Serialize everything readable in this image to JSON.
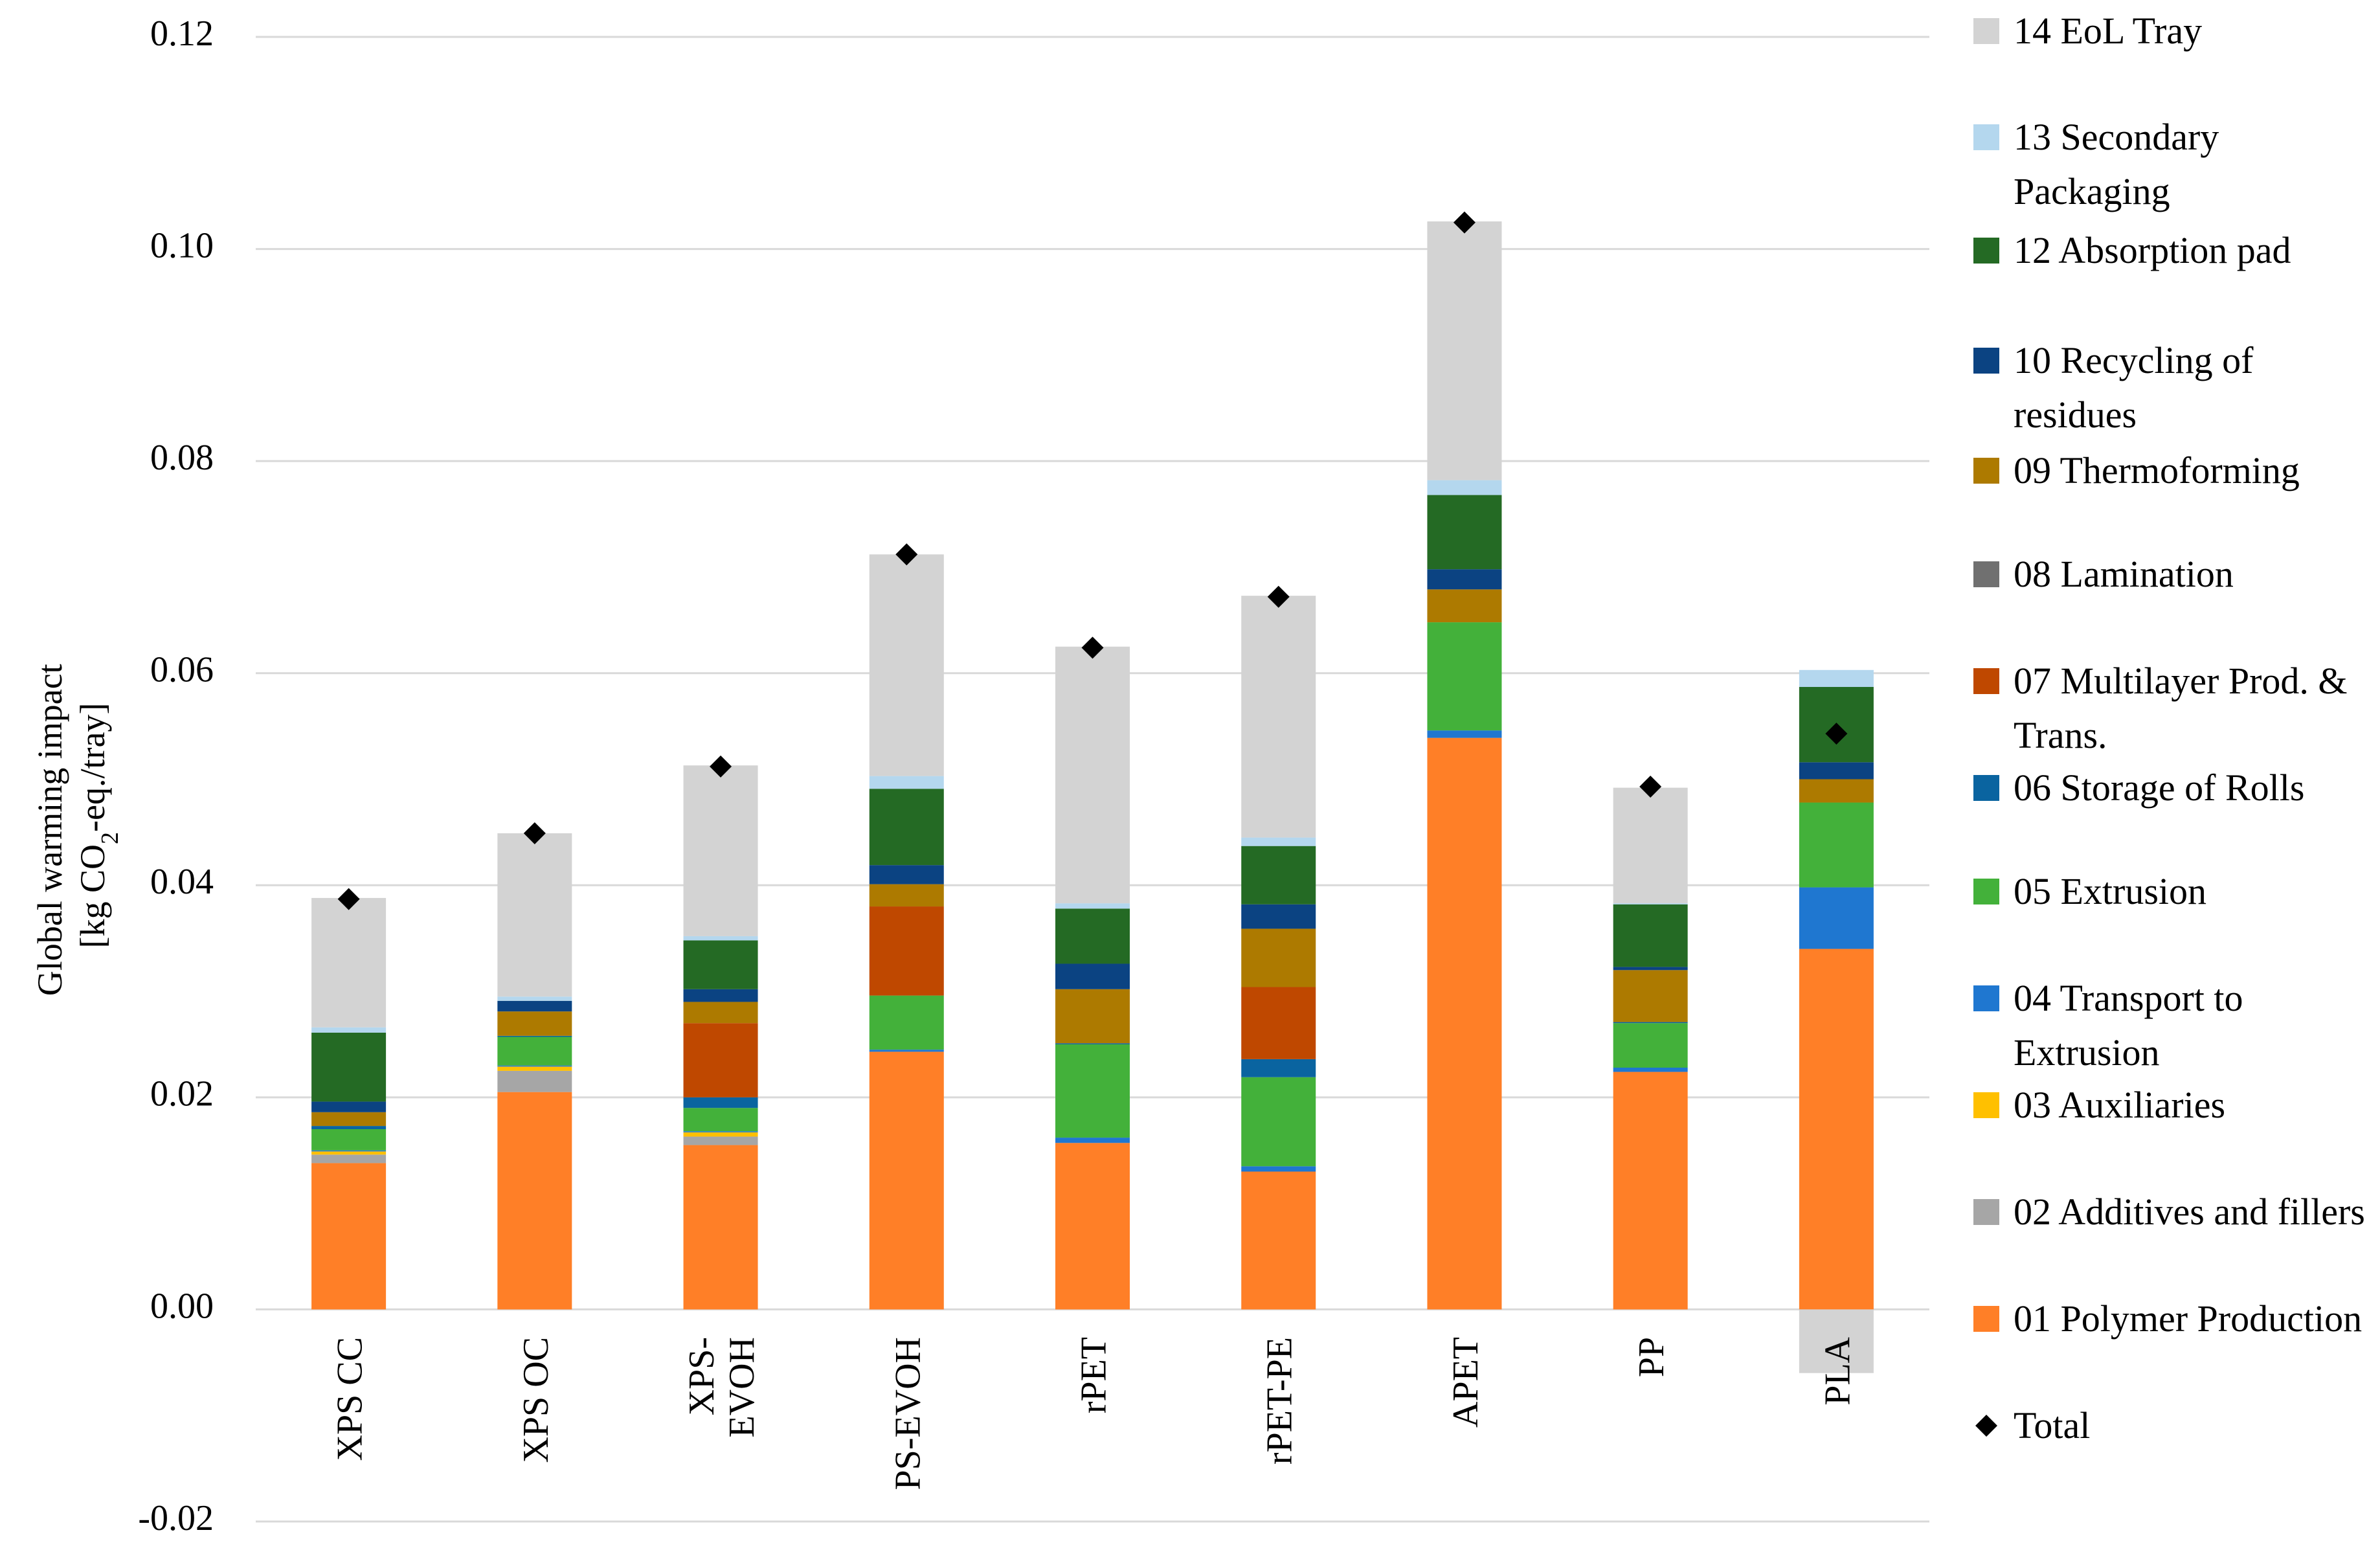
{
  "chart_data": {
    "type": "stacked-bar",
    "title": "",
    "ylabel_line1": "Global warming impact",
    "ylabel_line2_prefix": "[kg CO",
    "ylabel_line2_sub": "2",
    "ylabel_line2_suffix": "-eq./tray]",
    "ylim": [
      -0.02,
      0.12
    ],
    "yticks": [
      {
        "value": 0.12,
        "label": "0.12"
      },
      {
        "value": 0.1,
        "label": "0.10"
      },
      {
        "value": 0.08,
        "label": "0.08"
      },
      {
        "value": 0.06,
        "label": "0.06"
      },
      {
        "value": 0.04,
        "label": "0.04"
      },
      {
        "value": 0.02,
        "label": "0.02"
      },
      {
        "value": 0.0,
        "label": "0.00"
      },
      {
        "value": -0.02,
        "label": "-0.02"
      }
    ],
    "categories": [
      {
        "lines": [
          "XPS CC"
        ]
      },
      {
        "lines": [
          "XPS OC"
        ]
      },
      {
        "lines": [
          "XPS-",
          "EVOH"
        ]
      },
      {
        "lines": [
          "PS-EVOH"
        ]
      },
      {
        "lines": [
          "rPET"
        ]
      },
      {
        "lines": [
          "rPET-PE"
        ]
      },
      {
        "lines": [
          "APET"
        ]
      },
      {
        "lines": [
          "PP"
        ]
      },
      {
        "lines": [
          "PLA"
        ]
      }
    ],
    "series": [
      {
        "name": "01 Polymer Production",
        "color": "#FF7F27",
        "values": [
          0.0138,
          0.0205,
          0.0155,
          0.0243,
          0.0157,
          0.013,
          0.0539,
          0.0224,
          0.034
        ]
      },
      {
        "name": "02 Additives and fillers",
        "color": "#A6A6A6",
        "values": [
          0.0008,
          0.002,
          0.0008,
          0,
          0,
          0,
          0,
          0,
          0
        ]
      },
      {
        "name": "03 Auxiliaries",
        "color": "#FFC000",
        "values": [
          0.0003,
          0.0004,
          0.0004,
          0,
          0,
          0,
          0,
          0,
          0
        ]
      },
      {
        "name": "04 Transport to Extrusion",
        "color": "#1F77D0",
        "values": [
          0.0001,
          0.0001,
          0.0001,
          0.0002,
          0.0005,
          0.0005,
          0.0007,
          0.0004,
          0.0058
        ]
      },
      {
        "name": "05 Extrusion",
        "color": "#43B13A",
        "values": [
          0.002,
          0.0027,
          0.0022,
          0.0051,
          0.0088,
          0.0084,
          0.0102,
          0.0042,
          0.008
        ]
      },
      {
        "name": "06 Storage of Rolls",
        "color": "#0A64A0",
        "values": [
          0.0003,
          0.0001,
          0.001,
          0,
          0.0001,
          0.0017,
          0,
          0.0001,
          0
        ]
      },
      {
        "name": "07 Multilayer Prod. & Trans.",
        "color": "#BF4800",
        "values": [
          0,
          0,
          0.007,
          0.0084,
          0,
          0.0068,
          0,
          0,
          0
        ]
      },
      {
        "name": "08 Lamination",
        "color": "#707070",
        "values": [
          0,
          0,
          0,
          0,
          0,
          0,
          0,
          0,
          0
        ]
      },
      {
        "name": "09 Thermoforming",
        "color": "#AD7A00",
        "values": [
          0.0013,
          0.0023,
          0.002,
          0.0021,
          0.0051,
          0.0055,
          0.0031,
          0.0049,
          0.0022
        ]
      },
      {
        "name": "10 Recycling of residues",
        "color": "#0B4382",
        "values": [
          0.001,
          0.001,
          0.0012,
          0.0018,
          0.0024,
          0.0023,
          0.0019,
          0.0003,
          0.0016
        ]
      },
      {
        "name": "12 Absorption pad",
        "color": "#246A24",
        "values": [
          0.0065,
          0,
          0.0046,
          0.0072,
          0.0052,
          0.0055,
          0.007,
          0.0059,
          0.0071
        ]
      },
      {
        "name": "13 Secondary Packaging",
        "color": "#B4D7EE",
        "values": [
          0.0005,
          0.0004,
          0.0004,
          0.0012,
          0.0005,
          0.0008,
          0.0014,
          0.0001,
          0.0016
        ]
      },
      {
        "name": "14 EoL Tray",
        "color": "#D3D3D3",
        "values": [
          0.0122,
          0.0154,
          0.0161,
          0.0209,
          0.0242,
          0.0228,
          0.0244,
          0.0109,
          -0.006
        ]
      }
    ],
    "totals": {
      "name": "Total",
      "values": [
        0.0387,
        0.0449,
        0.0512,
        0.0712,
        0.0624,
        0.0672,
        0.1025,
        0.0493,
        0.0543
      ]
    }
  },
  "legend": {
    "items": [
      {
        "label": "14 EoL Tray",
        "color": "#D3D3D3",
        "icon": "swatch"
      },
      {
        "label": "13 Secondary Packaging",
        "color": "#B4D7EE",
        "icon": "swatch"
      },
      {
        "label": "12 Absorption pad",
        "color": "#246A24",
        "icon": "swatch"
      },
      {
        "label": "10 Recycling of residues",
        "color": "#0B4382",
        "icon": "swatch"
      },
      {
        "label": "09 Thermoforming",
        "color": "#AD7A00",
        "icon": "swatch"
      },
      {
        "label": "08 Lamination",
        "color": "#707070",
        "icon": "swatch"
      },
      {
        "label": "07 Multilayer Prod. & Trans.",
        "color": "#BF4800",
        "icon": "swatch"
      },
      {
        "label": "06 Storage of Rolls",
        "color": "#0A64A0",
        "icon": "swatch"
      },
      {
        "label": "05 Extrusion",
        "color": "#43B13A",
        "icon": "swatch"
      },
      {
        "label": "04 Transport to Extrusion",
        "color": "#1F77D0",
        "icon": "swatch"
      },
      {
        "label": "03 Auxiliaries",
        "color": "#FFC000",
        "icon": "swatch"
      },
      {
        "label": "02 Additives and fillers",
        "color": "#A6A6A6",
        "icon": "swatch"
      },
      {
        "label": "01 Polymer Production",
        "color": "#FF7F27",
        "icon": "swatch"
      },
      {
        "label": "Total",
        "color": "#000000",
        "icon": "diamond-marker-icon"
      }
    ]
  }
}
